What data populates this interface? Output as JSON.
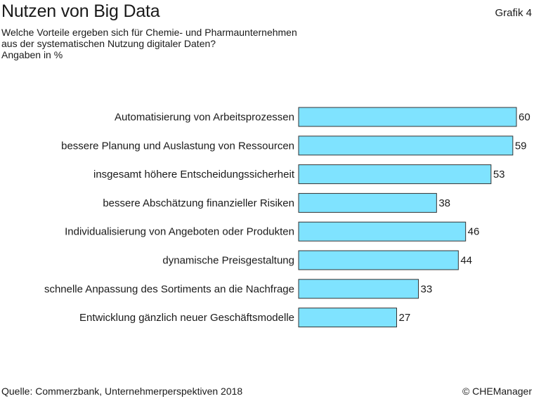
{
  "header": {
    "title": "Nutzen von Big Data",
    "grafik": "Grafik 4",
    "subtitle_lines": [
      "Welche Vorteile ergeben sich für Chemie- und Pharmaunternehmen",
      "aus der systematischen Nutzung digitaler Daten?",
      "Angaben in %"
    ]
  },
  "footer": {
    "source": "Quelle: Commerzbank, Unternehmerperspektiven 2018",
    "copyright": "© CHEManager"
  },
  "chart_data": {
    "type": "bar",
    "orientation": "horizontal",
    "title": "Nutzen von Big Data",
    "unit": "Angaben in %",
    "categories": [
      "Automatisierung von Arbeitsprozessen",
      "bessere Planung und Auslastung von Ressourcen",
      "insgesamt höhere Entscheidungssicherheit",
      "bessere Abschätzung finanzieller Risiken",
      "Individualisierung von Angeboten oder Produkten",
      "dynamische Preisgestaltung",
      "schnelle Anpassung des Sortiments an die Nachfrage",
      "Entwicklung gänzlich neuer Geschäftsmodelle"
    ],
    "values": [
      60,
      59,
      53,
      38,
      46,
      44,
      33,
      27
    ],
    "xlim": [
      0,
      60
    ],
    "grid": false,
    "legend": "none",
    "bar_color": "#7fe3ff",
    "bar_stroke": "#333333"
  }
}
